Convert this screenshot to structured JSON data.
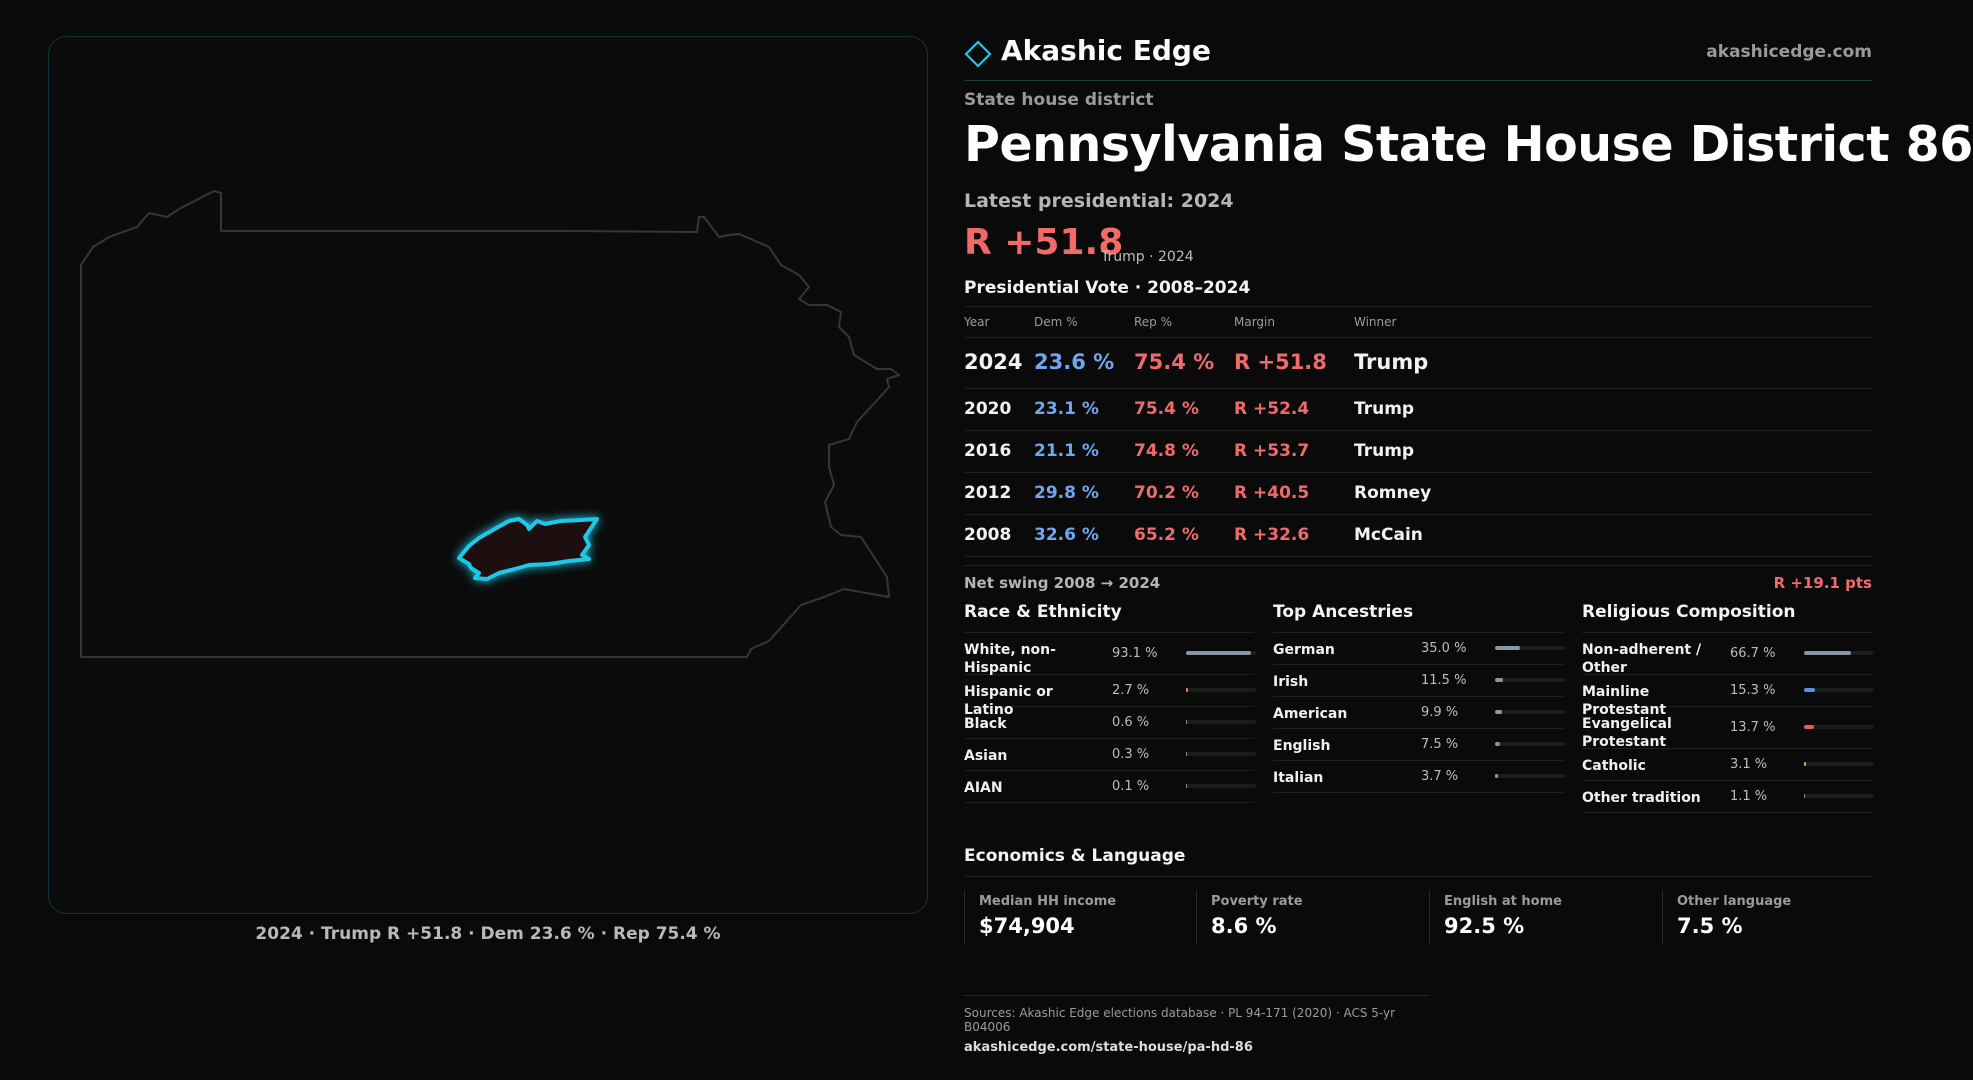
{
  "map": {
    "caption": "2024 · Trump R +51.8 · Dem 23.6 % · Rep 75.4 %",
    "state_outline_color": "#3a3a3a",
    "district_color": "#1ec8e6"
  },
  "brand": {
    "name": "Akashic Edge",
    "logo_icon": "diamond-outline-icon",
    "url": "akashicedge.com"
  },
  "header": {
    "kicker": "State house district",
    "title": "Pennsylvania State House District 86",
    "latest_label": "Latest presidential: 2024",
    "margin": "R +51.8",
    "margin_sub": "Trump · 2024"
  },
  "results": {
    "title": "Presidential Vote · 2008–2024",
    "headers": {
      "year": "Year",
      "dem": "Dem %",
      "rep": "Rep %",
      "margin": "Margin",
      "winner": "Winner"
    },
    "rows": [
      {
        "year": "2024",
        "dem": "23.6 %",
        "rep": "75.4 %",
        "margin": "R +51.8",
        "winner": "Trump"
      },
      {
        "year": "2020",
        "dem": "23.1 %",
        "rep": "75.4 %",
        "margin": "R +52.4",
        "winner": "Trump"
      },
      {
        "year": "2016",
        "dem": "21.1 %",
        "rep": "74.8 %",
        "margin": "R +53.7",
        "winner": "Trump"
      },
      {
        "year": "2012",
        "dem": "29.8 %",
        "rep": "70.2 %",
        "margin": "R +40.5",
        "winner": "Romney"
      },
      {
        "year": "2008",
        "dem": "32.6 %",
        "rep": "65.2 %",
        "margin": "R +32.6",
        "winner": "McCain"
      }
    ],
    "swing_label": "Net swing 2008 → 2024",
    "swing_value": "R +19.1 pts"
  },
  "race": {
    "title": "Race & Ethnicity",
    "rows": [
      {
        "label": "White, non-Hispanic",
        "value": "93.1 %",
        "pct": 93.1,
        "color": "#8a96a6",
        "tall": true
      },
      {
        "label": "Hispanic or Latino",
        "value": "2.7 %",
        "pct": 2.7,
        "color": "#e0913a",
        "tall": false
      },
      {
        "label": "Black",
        "value": "0.6 %",
        "pct": 0.6,
        "color": "#8a96a6",
        "tall": false
      },
      {
        "label": "Asian",
        "value": "0.3 %",
        "pct": 0.3,
        "color": "#8a96a6",
        "tall": false
      },
      {
        "label": "AIAN",
        "value": "0.1 %",
        "pct": 0.1,
        "color": "#8a96a6",
        "tall": false
      }
    ]
  },
  "ancestry": {
    "title": "Top Ancestries",
    "rows": [
      {
        "label": "German",
        "value": "35.0 %",
        "pct": 35.0,
        "color": "#8a96a6",
        "tall": false
      },
      {
        "label": "Irish",
        "value": "11.5 %",
        "pct": 11.5,
        "color": "#8a96a6",
        "tall": false
      },
      {
        "label": "American",
        "value": "9.9 %",
        "pct": 9.9,
        "color": "#8a96a6",
        "tall": false
      },
      {
        "label": "English",
        "value": "7.5 %",
        "pct": 7.5,
        "color": "#8a96a6",
        "tall": false
      },
      {
        "label": "Italian",
        "value": "3.7 %",
        "pct": 3.7,
        "color": "#8a96a6",
        "tall": false
      }
    ]
  },
  "religion": {
    "title": "Religious Composition",
    "rows": [
      {
        "label": "Non-adherent / Other",
        "value": "66.7 %",
        "pct": 66.7,
        "color": "#8a96a6",
        "tall": true
      },
      {
        "label": "Mainline Protestant",
        "value": "15.3 %",
        "pct": 15.3,
        "color": "#5b8fe0",
        "tall": false
      },
      {
        "label": "Evangelical Protestant",
        "value": "13.7 %",
        "pct": 13.7,
        "color": "#e06060",
        "tall": true
      },
      {
        "label": "Catholic",
        "value": "3.1 %",
        "pct": 3.1,
        "color": "#e0a03a",
        "tall": false
      },
      {
        "label": "Other tradition",
        "value": "1.1 %",
        "pct": 1.1,
        "color": "#8a96a6",
        "tall": false
      }
    ]
  },
  "economics": {
    "title": "Economics & Language",
    "cells": [
      {
        "label": "Median HH income",
        "value": "$74,904"
      },
      {
        "label": "Poverty rate",
        "value": "8.6 %"
      },
      {
        "label": "English at home",
        "value": "92.5 %"
      },
      {
        "label": "Other language",
        "value": "7.5 %"
      }
    ]
  },
  "sources": {
    "text": "Sources: Akashic Edge elections database · PL 94-171 (2020) · ACS 5-yr B04006",
    "url": "akashicedge.com/state-house/pa-hd-86"
  }
}
